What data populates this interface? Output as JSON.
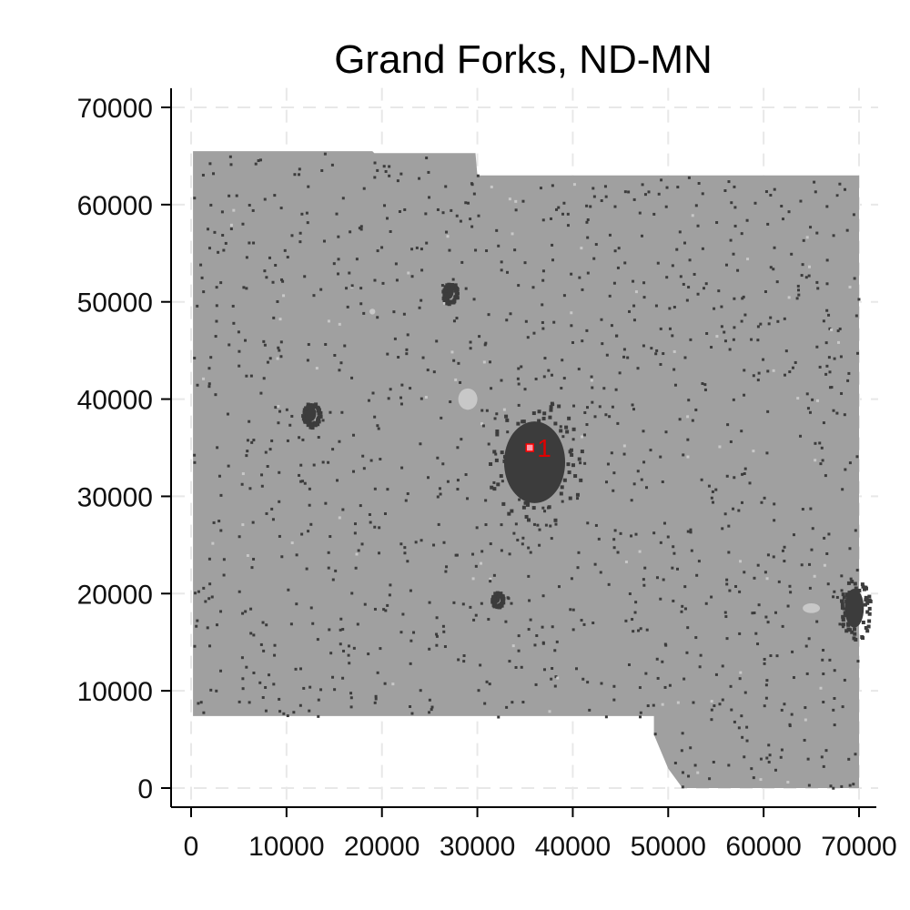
{
  "chart_data": {
    "type": "map",
    "title": "Grand Forks, ND-MN",
    "xlabel": "",
    "ylabel": "",
    "xlim": [
      -2000,
      72000
    ],
    "ylim": [
      -2000,
      72000
    ],
    "x_ticks": [
      0,
      10000,
      20000,
      30000,
      40000,
      50000,
      60000,
      70000
    ],
    "x_tick_labels": [
      "0",
      "10000",
      "20000",
      "30000",
      "40000",
      "50000",
      "60000",
      "70000"
    ],
    "y_ticks": [
      0,
      10000,
      20000,
      30000,
      40000,
      50000,
      60000,
      70000
    ],
    "y_tick_labels": [
      "0",
      "10000",
      "20000",
      "30000",
      "40000",
      "50000",
      "60000",
      "70000"
    ],
    "grid": true,
    "region_outline": [
      [
        200,
        65500
      ],
      [
        19000,
        65500
      ],
      [
        19200,
        65300
      ],
      [
        29800,
        65300
      ],
      [
        30000,
        63000
      ],
      [
        70000,
        63000
      ],
      [
        70000,
        0
      ],
      [
        51500,
        0
      ],
      [
        50000,
        2000
      ],
      [
        48500,
        5500
      ],
      [
        48500,
        7400
      ],
      [
        200,
        7400
      ]
    ],
    "urban_cores": [
      {
        "x": 36000,
        "y": 33500,
        "rx": 3200,
        "ry": 4200
      },
      {
        "x": 69500,
        "y": 18500,
        "rx": 1000,
        "ry": 2000
      },
      {
        "x": 32000,
        "y": 19500,
        "rx": 400,
        "ry": 500
      },
      {
        "x": 12500,
        "y": 38500,
        "rx": 600,
        "ry": 800
      },
      {
        "x": 27000,
        "y": 51000,
        "rx": 500,
        "ry": 700
      }
    ],
    "light_patches": [
      {
        "x": 29000,
        "y": 40000,
        "rx": 1000,
        "ry": 1100
      },
      {
        "x": 65000,
        "y": 18500,
        "rx": 900,
        "ry": 500
      },
      {
        "x": 19000,
        "y": 49000,
        "rx": 300,
        "ry": 300
      }
    ],
    "markers": [
      {
        "label": "1",
        "x": 35500,
        "y": 35000
      }
    ],
    "colors": {
      "background_land": "#a0a0a0",
      "urban": "#3c3c3c",
      "light": "#c8c8c8",
      "marker": "#ff0000",
      "grid": "#e8e8e8",
      "axis": "#000000"
    }
  }
}
